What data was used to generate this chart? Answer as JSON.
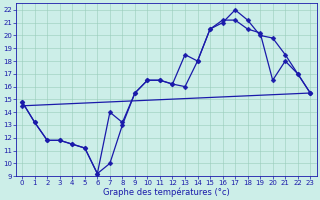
{
  "xlabel": "Graphe des températures (°c)",
  "xlim": [
    -0.5,
    23.5
  ],
  "ylim": [
    9,
    22.5
  ],
  "xticks": [
    0,
    1,
    2,
    3,
    4,
    5,
    6,
    7,
    8,
    9,
    10,
    11,
    12,
    13,
    14,
    15,
    16,
    17,
    18,
    19,
    20,
    21,
    22,
    23
  ],
  "yticks": [
    9,
    10,
    11,
    12,
    13,
    14,
    15,
    16,
    17,
    18,
    19,
    20,
    21,
    22
  ],
  "bg_color": "#cceee8",
  "line_color": "#1a1aaa",
  "line1_x": [
    0,
    1,
    2,
    3,
    4,
    5,
    6,
    7,
    8,
    9,
    10,
    11,
    12,
    13,
    14,
    15,
    16,
    17,
    18,
    19,
    20,
    21,
    22,
    23
  ],
  "line1_y": [
    14.8,
    13.2,
    11.8,
    11.8,
    11.5,
    11.2,
    9.2,
    10.0,
    13.0,
    15.5,
    16.5,
    16.5,
    16.2,
    16.0,
    18.0,
    20.5,
    21.0,
    22.0,
    21.2,
    20.0,
    19.8,
    18.5,
    17.0,
    15.5
  ],
  "line2_x": [
    0,
    1,
    2,
    3,
    4,
    5,
    6,
    7,
    8,
    9,
    10,
    11,
    12,
    13,
    14,
    15,
    16,
    17,
    18,
    19,
    20,
    21,
    22,
    23
  ],
  "line2_y": [
    14.8,
    13.2,
    11.8,
    11.8,
    11.5,
    11.2,
    9.2,
    14.0,
    13.2,
    15.5,
    16.5,
    16.5,
    16.2,
    18.5,
    18.0,
    20.5,
    21.2,
    21.2,
    20.5,
    20.2,
    16.5,
    18.0,
    17.0,
    15.5
  ],
  "line3_x": [
    0,
    23
  ],
  "line3_y": [
    14.5,
    15.5
  ],
  "marker": "D",
  "markersize": 2.5,
  "linewidth": 0.9,
  "tick_fontsize": 5.0,
  "xlabel_fontsize": 6.0,
  "grid_color": "#99ccbb",
  "grid_linewidth": 0.4
}
